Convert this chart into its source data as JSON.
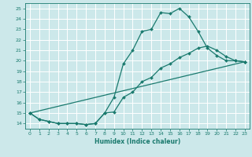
{
  "title": "",
  "xlabel": "Humidex (Indice chaleur)",
  "ylabel": "",
  "background_color": "#cce8ea",
  "grid_color": "#ffffff",
  "line_color": "#1a7a6e",
  "xlim": [
    -0.5,
    23.5
  ],
  "ylim": [
    13.5,
    25.5
  ],
  "xticks": [
    0,
    1,
    2,
    3,
    4,
    5,
    6,
    7,
    8,
    9,
    10,
    11,
    12,
    13,
    14,
    15,
    16,
    17,
    18,
    19,
    20,
    21,
    22,
    23
  ],
  "yticks": [
    14,
    15,
    16,
    17,
    18,
    19,
    20,
    21,
    22,
    23,
    24,
    25
  ],
  "line1_x": [
    0,
    1,
    2,
    3,
    4,
    5,
    6,
    7,
    8,
    9,
    10,
    11,
    12,
    13,
    14,
    15,
    16,
    17,
    18,
    19,
    20,
    21,
    22,
    23
  ],
  "line1_y": [
    15,
    14.4,
    14.2,
    14.0,
    14.0,
    14.0,
    13.9,
    14.0,
    15.0,
    16.5,
    19.7,
    21.0,
    22.8,
    23.0,
    24.6,
    24.5,
    25.0,
    24.2,
    22.8,
    21.2,
    20.5,
    20.0,
    20.0,
    19.9
  ],
  "line2_x": [
    0,
    1,
    2,
    3,
    4,
    5,
    6,
    7,
    8,
    9,
    10,
    11,
    12,
    13,
    14,
    15,
    16,
    17,
    18,
    19,
    20,
    21,
    22,
    23
  ],
  "line2_y": [
    15,
    14.4,
    14.2,
    14.0,
    14.0,
    14.0,
    13.9,
    14.0,
    15.0,
    15.1,
    16.5,
    17.0,
    18.0,
    18.4,
    19.3,
    19.7,
    20.3,
    20.7,
    21.2,
    21.4,
    21.0,
    20.4,
    20.0,
    19.9
  ],
  "line3_x": [
    0,
    23
  ],
  "line3_y": [
    15,
    19.9
  ],
  "marker_style": "D",
  "marker_size": 2.0,
  "line_width": 0.9
}
